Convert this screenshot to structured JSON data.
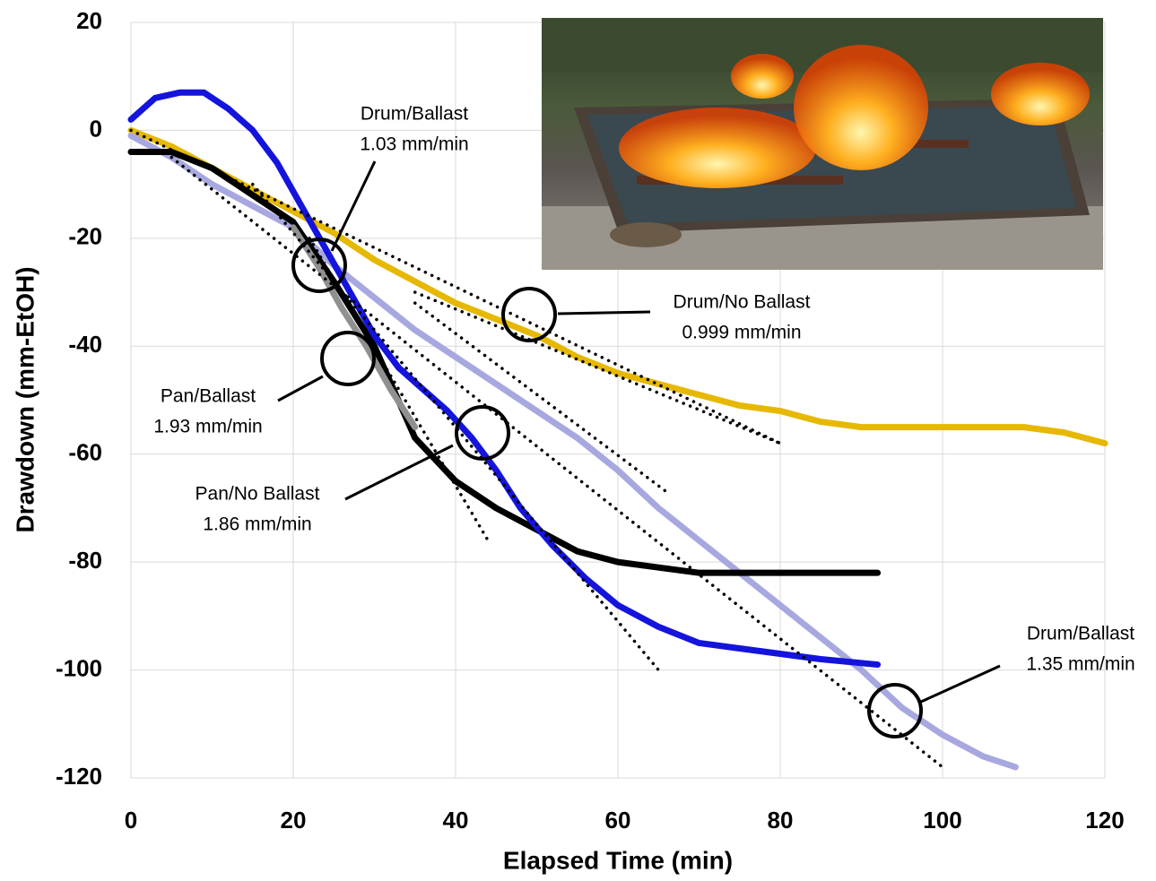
{
  "chart_data": {
    "type": "line",
    "x_label": "Elapsed Time (min)",
    "y_label": "Drawdown (mm-EtOH)",
    "xlim": [
      0,
      120
    ],
    "ylim": [
      -120,
      20
    ],
    "xticks": [
      0,
      20,
      40,
      60,
      80,
      100,
      120
    ],
    "yticks": [
      -120,
      -100,
      -80,
      -60,
      -40,
      -20,
      0,
      20
    ],
    "grid": true,
    "series": [
      {
        "color": "#e6b800",
        "x": [
          0,
          5,
          10,
          15,
          20,
          25,
          30,
          35,
          40,
          45,
          50,
          55,
          60,
          65,
          70,
          75,
          80,
          85,
          90,
          95,
          100,
          105,
          110,
          115,
          120
        ],
        "values": [
          0,
          -3,
          -7,
          -11,
          -15,
          -19,
          -24,
          -28,
          -32,
          -35,
          -38,
          -42,
          -45,
          -47,
          -49,
          -51,
          -52,
          -54,
          -55,
          -55,
          -55,
          -55,
          -55,
          -56,
          -58
        ]
      },
      {
        "color": "#a8a8e0",
        "x": [
          0,
          5,
          10,
          15,
          20,
          25,
          30,
          35,
          40,
          45,
          50,
          55,
          60,
          65,
          70,
          75,
          80,
          85,
          90,
          95,
          100,
          105,
          109
        ],
        "values": [
          -1,
          -5,
          -10,
          -14,
          -18,
          -25,
          -31,
          -37,
          -42,
          -47,
          -52,
          -57,
          -63,
          -70,
          -76,
          -82,
          -88,
          -94,
          -100,
          -107,
          -112,
          -116,
          -118
        ]
      },
      {
        "color": "#000000",
        "x": [
          0,
          5,
          10,
          15,
          20,
          25,
          30,
          35,
          40,
          45,
          50,
          55,
          60,
          65,
          70,
          80,
          92
        ],
        "values": [
          -4,
          -4,
          -7,
          -12,
          -17,
          -28,
          -40,
          -57,
          -65,
          -70,
          -74,
          -78,
          -80,
          -81,
          -82,
          -82,
          -82
        ]
      },
      {
        "color": "#909090",
        "x": [
          20,
          23,
          26,
          29,
          32,
          35
        ],
        "values": [
          -18,
          -25,
          -33,
          -40,
          -48,
          -55
        ]
      },
      {
        "color": "#1414dc",
        "x": [
          0,
          3,
          6,
          9,
          12,
          15,
          18,
          21,
          24,
          27,
          30,
          33,
          36,
          39,
          42,
          45,
          48,
          52,
          56,
          60,
          65,
          70,
          75,
          80,
          85,
          92
        ],
        "values": [
          2,
          6,
          7,
          7,
          4,
          0,
          -6,
          -14,
          -22,
          -30,
          -38,
          -44,
          -48,
          -52,
          -57,
          -63,
          -70,
          -77,
          -83,
          -88,
          -92,
          -95,
          -96,
          -97,
          -98,
          -99
        ]
      }
    ],
    "trendlines": [
      {
        "x": [
          0,
          80
        ],
        "values": [
          0,
          -58
        ]
      },
      {
        "x": [
          35,
          80
        ],
        "values": [
          -30,
          -58
        ]
      },
      {
        "x": [
          5,
          100
        ],
        "values": [
          -5,
          -118
        ]
      },
      {
        "x": [
          22,
          44
        ],
        "values": [
          -20,
          -76
        ]
      },
      {
        "x": [
          15,
          65
        ],
        "values": [
          -10,
          -100
        ]
      },
      {
        "x": [
          35,
          66
        ],
        "values": [
          -32,
          -67
        ]
      }
    ],
    "annotations": [
      {
        "text": [
          "Drum/Ballast",
          "1.03 mm/min"
        ]
      },
      {
        "text": [
          "Drum/No Ballast",
          "0.999 mm/min"
        ]
      },
      {
        "text": [
          "Pan/Ballast",
          "1.93 mm/min"
        ]
      },
      {
        "text": [
          "Pan/No Ballast",
          "1.86 mm/min"
        ]
      },
      {
        "text": [
          "Drum/Ballast",
          "1.35 mm/min"
        ]
      }
    ]
  }
}
